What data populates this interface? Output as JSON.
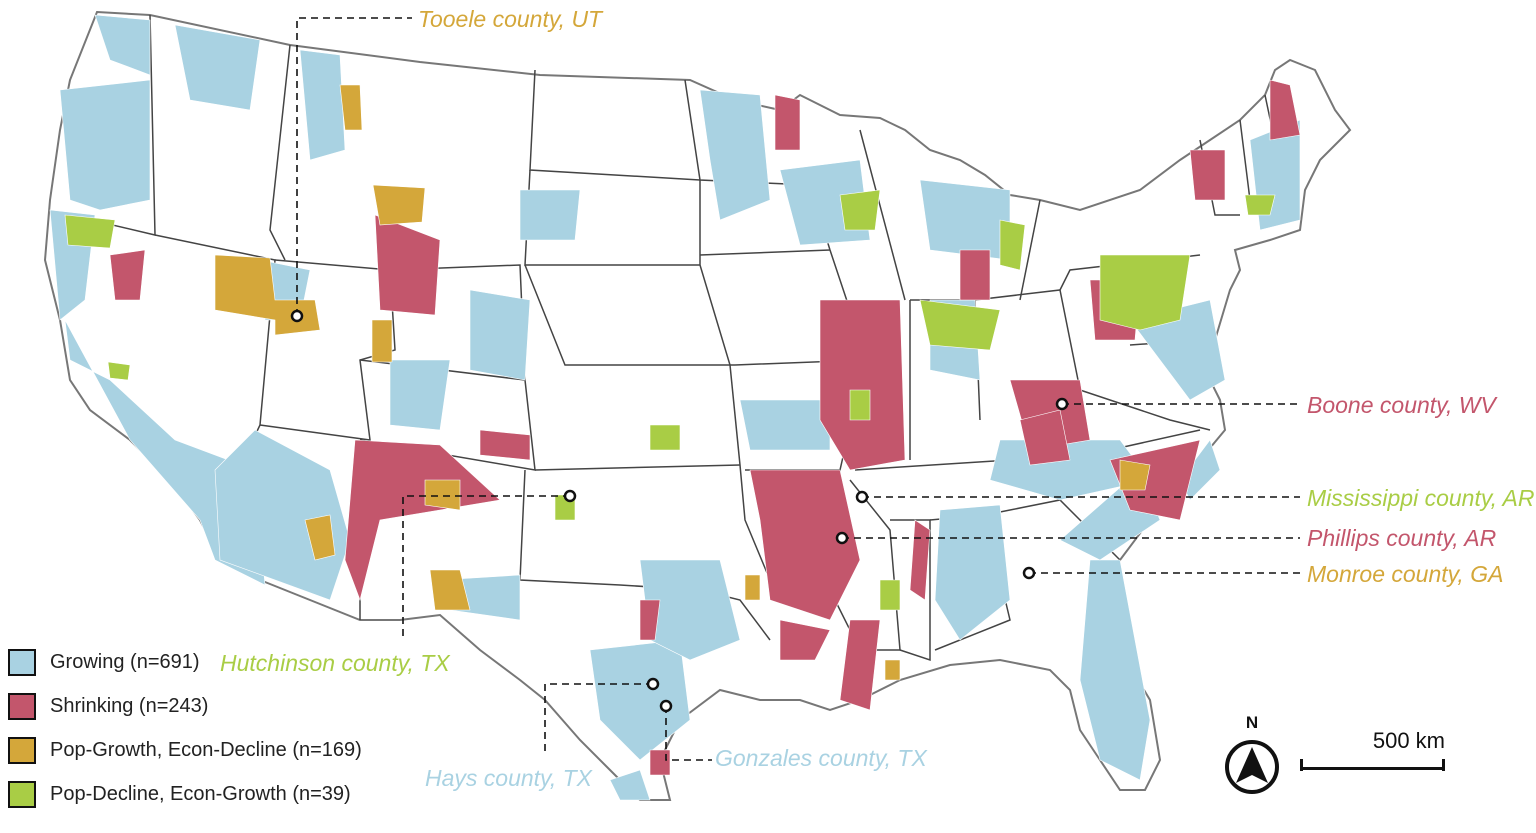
{
  "colors": {
    "growing": "#a9d2e2",
    "shrinking": "#c3566c",
    "pop_growth_econ_decline": "#d4a73a",
    "pop_decline_econ_growth": "#a9cd45",
    "state_border": "#444444",
    "county_border": "#cccccc",
    "callout_line": "#111111"
  },
  "legend": [
    {
      "key": "growing",
      "label": "Growing (n=691)"
    },
    {
      "key": "shrinking",
      "label": "Shrinking (n=243)"
    },
    {
      "key": "pop_growth_econ_decline",
      "label": "Pop-Growth, Econ-Decline (n=169)"
    },
    {
      "key": "pop_decline_econ_growth",
      "label": "Pop-Decline, Econ-Growth (n=39)"
    }
  ],
  "callouts": {
    "tooele": {
      "label": "Tooele county, UT",
      "category": "pop_growth_econ_decline"
    },
    "boone": {
      "label": "Boone county, WV",
      "category": "shrinking"
    },
    "mississippi": {
      "label": "Mississippi county, AR",
      "category": "pop_decline_econ_growth"
    },
    "phillips": {
      "label": "Phillips county, AR",
      "category": "shrinking"
    },
    "monroe": {
      "label": "Monroe county, GA",
      "category": "pop_growth_econ_decline"
    },
    "hutchinson": {
      "label": "Hutchinson county, TX",
      "category": "pop_decline_econ_growth"
    },
    "hays": {
      "label": "Hays county, TX",
      "category": "growing"
    },
    "gonzales": {
      "label": "Gonzales county, TX",
      "category": "growing"
    }
  },
  "north_arrow": {
    "label": "N",
    "icon": "north-arrow-icon"
  },
  "scale_bar": {
    "label": "500 km"
  }
}
